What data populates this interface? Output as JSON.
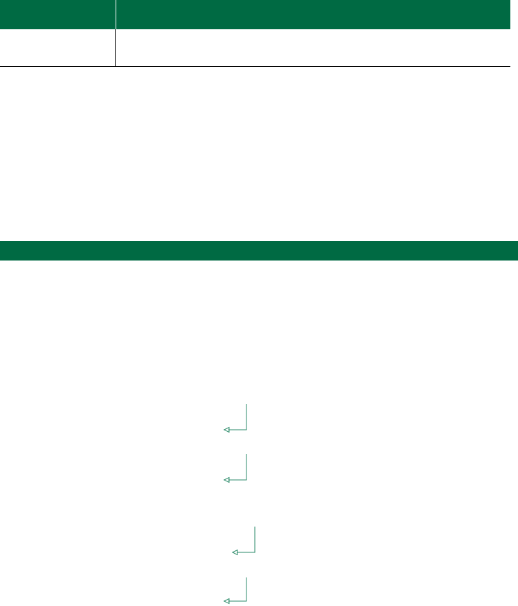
{
  "table": {
    "header_left": "",
    "header_right": "",
    "row_left": "",
    "row_right": ""
  },
  "section_bar": {
    "label": ""
  },
  "colors": {
    "brand_green": "#006a43",
    "rule": "#000000",
    "arrow": "#2a8a68"
  },
  "arrows": [
    {
      "icon": "return-arrow-icon"
    },
    {
      "icon": "return-arrow-icon"
    },
    {
      "icon": "return-arrow-icon"
    },
    {
      "icon": "return-arrow-icon"
    }
  ]
}
